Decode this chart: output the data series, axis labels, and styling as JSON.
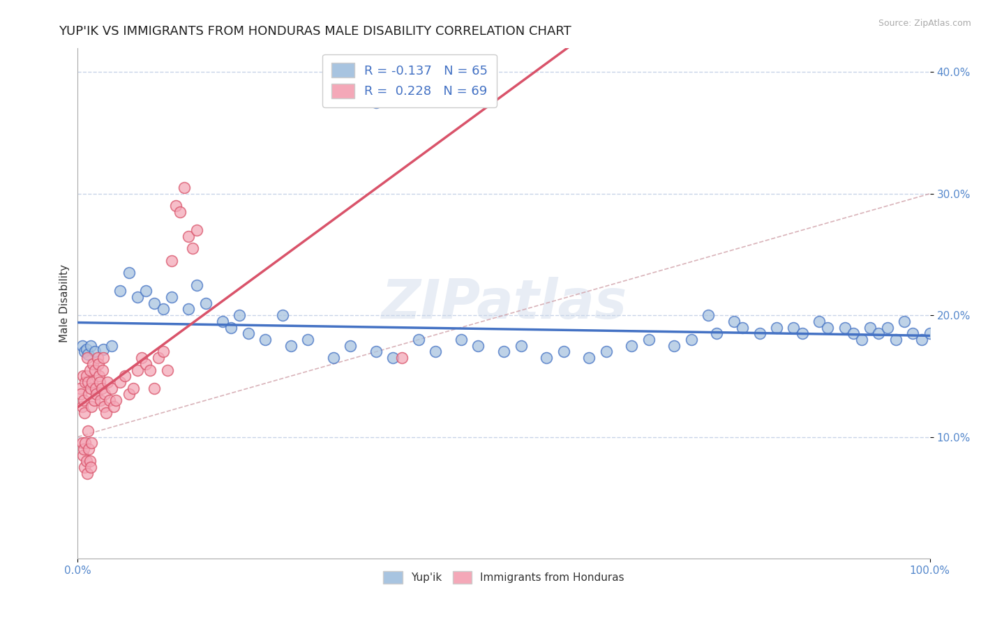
{
  "title": "YUP'IK VS IMMIGRANTS FROM HONDURAS MALE DISABILITY CORRELATION CHART",
  "source": "Source: ZipAtlas.com",
  "ylabel": "Male Disability",
  "watermark": "ZIPatlas",
  "yupik_color": "#a8c4e0",
  "honduras_color": "#f4a8b8",
  "yupik_line_color": "#4472c4",
  "honduras_line_color": "#d9536a",
  "trend_dash_color": "#d9536a",
  "background_color": "#ffffff",
  "grid_color": "#c8d4e8",
  "yupik_scatter": [
    [
      0.5,
      17.5
    ],
    [
      0.8,
      17.0
    ],
    [
      1.0,
      17.2
    ],
    [
      1.2,
      16.8
    ],
    [
      1.5,
      17.5
    ],
    [
      2.0,
      17.0
    ],
    [
      3.0,
      17.2
    ],
    [
      4.0,
      17.5
    ],
    [
      5.0,
      22.0
    ],
    [
      6.0,
      23.5
    ],
    [
      7.0,
      21.5
    ],
    [
      8.0,
      22.0
    ],
    [
      9.0,
      21.0
    ],
    [
      10.0,
      20.5
    ],
    [
      11.0,
      21.5
    ],
    [
      13.0,
      20.5
    ],
    [
      14.0,
      22.5
    ],
    [
      15.0,
      21.0
    ],
    [
      17.0,
      19.5
    ],
    [
      18.0,
      19.0
    ],
    [
      19.0,
      20.0
    ],
    [
      20.0,
      18.5
    ],
    [
      22.0,
      18.0
    ],
    [
      24.0,
      20.0
    ],
    [
      25.0,
      17.5
    ],
    [
      27.0,
      18.0
    ],
    [
      30.0,
      16.5
    ],
    [
      32.0,
      17.5
    ],
    [
      35.0,
      17.0
    ],
    [
      37.0,
      16.5
    ],
    [
      40.0,
      18.0
    ],
    [
      42.0,
      17.0
    ],
    [
      45.0,
      18.0
    ],
    [
      47.0,
      17.5
    ],
    [
      50.0,
      17.0
    ],
    [
      52.0,
      17.5
    ],
    [
      55.0,
      16.5
    ],
    [
      57.0,
      17.0
    ],
    [
      60.0,
      16.5
    ],
    [
      62.0,
      17.0
    ],
    [
      65.0,
      17.5
    ],
    [
      67.0,
      18.0
    ],
    [
      70.0,
      17.5
    ],
    [
      72.0,
      18.0
    ],
    [
      74.0,
      20.0
    ],
    [
      75.0,
      18.5
    ],
    [
      77.0,
      19.5
    ],
    [
      78.0,
      19.0
    ],
    [
      80.0,
      18.5
    ],
    [
      82.0,
      19.0
    ],
    [
      84.0,
      19.0
    ],
    [
      85.0,
      18.5
    ],
    [
      87.0,
      19.5
    ],
    [
      88.0,
      19.0
    ],
    [
      90.0,
      19.0
    ],
    [
      91.0,
      18.5
    ],
    [
      92.0,
      18.0
    ],
    [
      93.0,
      19.0
    ],
    [
      94.0,
      18.5
    ],
    [
      95.0,
      19.0
    ],
    [
      96.0,
      18.0
    ],
    [
      97.0,
      19.5
    ],
    [
      98.0,
      18.5
    ],
    [
      99.0,
      18.0
    ],
    [
      100.0,
      18.5
    ],
    [
      35.0,
      37.5
    ]
  ],
  "honduras_scatter": [
    [
      0.3,
      14.0
    ],
    [
      0.4,
      13.5
    ],
    [
      0.5,
      12.5
    ],
    [
      0.6,
      15.0
    ],
    [
      0.7,
      13.0
    ],
    [
      0.8,
      12.0
    ],
    [
      0.9,
      14.5
    ],
    [
      1.0,
      15.0
    ],
    [
      1.1,
      16.5
    ],
    [
      1.2,
      14.5
    ],
    [
      1.3,
      13.5
    ],
    [
      1.4,
      15.5
    ],
    [
      1.5,
      14.0
    ],
    [
      1.6,
      12.5
    ],
    [
      1.7,
      14.5
    ],
    [
      1.8,
      16.0
    ],
    [
      1.9,
      13.0
    ],
    [
      2.0,
      15.5
    ],
    [
      2.1,
      14.0
    ],
    [
      2.2,
      13.5
    ],
    [
      2.3,
      16.5
    ],
    [
      2.4,
      16.0
    ],
    [
      2.5,
      15.0
    ],
    [
      2.6,
      14.5
    ],
    [
      2.7,
      13.0
    ],
    [
      2.8,
      14.0
    ],
    [
      2.9,
      15.5
    ],
    [
      3.0,
      16.5
    ],
    [
      3.1,
      12.5
    ],
    [
      3.2,
      13.5
    ],
    [
      3.3,
      12.0
    ],
    [
      3.5,
      14.5
    ],
    [
      3.7,
      13.0
    ],
    [
      4.0,
      14.0
    ],
    [
      4.2,
      12.5
    ],
    [
      4.5,
      13.0
    ],
    [
      5.0,
      14.5
    ],
    [
      5.5,
      15.0
    ],
    [
      6.0,
      13.5
    ],
    [
      6.5,
      14.0
    ],
    [
      7.0,
      15.5
    ],
    [
      7.5,
      16.5
    ],
    [
      8.0,
      16.0
    ],
    [
      8.5,
      15.5
    ],
    [
      9.0,
      14.0
    ],
    [
      9.5,
      16.5
    ],
    [
      10.0,
      17.0
    ],
    [
      10.5,
      15.5
    ],
    [
      11.0,
      24.5
    ],
    [
      11.5,
      29.0
    ],
    [
      12.0,
      28.5
    ],
    [
      12.5,
      30.5
    ],
    [
      13.0,
      26.5
    ],
    [
      13.5,
      25.5
    ],
    [
      14.0,
      27.0
    ],
    [
      0.5,
      9.5
    ],
    [
      0.6,
      8.5
    ],
    [
      0.7,
      9.0
    ],
    [
      0.8,
      7.5
    ],
    [
      0.9,
      9.5
    ],
    [
      1.0,
      8.0
    ],
    [
      1.1,
      7.0
    ],
    [
      1.2,
      10.5
    ],
    [
      1.3,
      9.0
    ],
    [
      1.4,
      8.0
    ],
    [
      1.5,
      7.5
    ],
    [
      1.6,
      9.5
    ],
    [
      38.0,
      16.5
    ]
  ],
  "xlim": [
    0,
    100
  ],
  "ylim": [
    0,
    42
  ],
  "yticks": [
    10,
    20,
    30,
    40
  ],
  "ytick_labels": [
    "10.0%",
    "20.0%",
    "30.0%",
    "40.0%"
  ],
  "title_fontsize": 13,
  "axis_label_fontsize": 11,
  "tick_fontsize": 11,
  "source_fontsize": 9
}
